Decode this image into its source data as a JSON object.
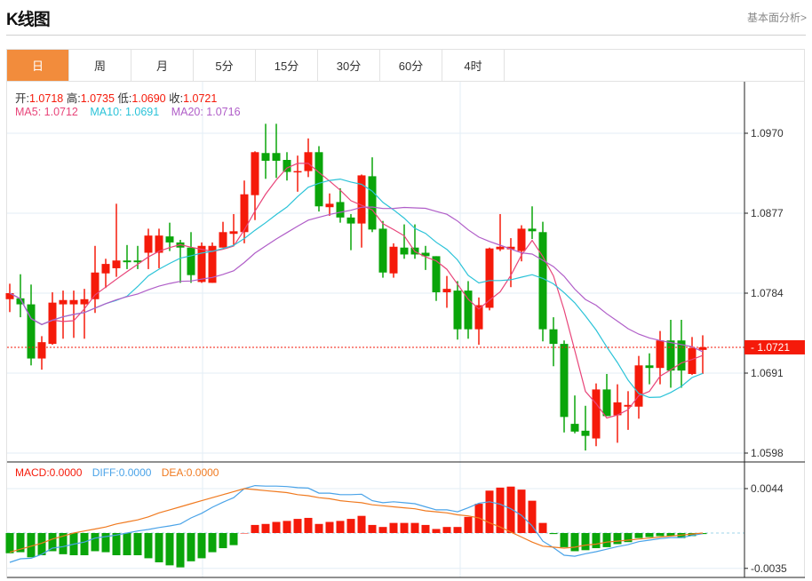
{
  "header": {
    "title": "K线图",
    "link": "基本面分析>"
  },
  "tabs": [
    {
      "label": "日",
      "active": true
    },
    {
      "label": "周"
    },
    {
      "label": "月"
    },
    {
      "label": "5分"
    },
    {
      "label": "15分"
    },
    {
      "label": "30分"
    },
    {
      "label": "60分"
    },
    {
      "label": "4时"
    }
  ],
  "ohlc_legend": {
    "open_label": "开:",
    "open": "1.0718",
    "high_label": "高:",
    "high": "1.0735",
    "low_label": "低:",
    "low": "1.0690",
    "close_label": "收:",
    "close": "1.0721"
  },
  "ma_legend": {
    "ma5": "MA5: 1.0712",
    "ma10": "MA10: 1.0691",
    "ma20": "MA20: 1.0716"
  },
  "macd_legend": {
    "macd": "MACD:0.0000",
    "diff": "DIFF:0.0000",
    "dea": "DEA:0.0000"
  },
  "colors": {
    "up": "#f51a0a",
    "down": "#0aa50a",
    "ma5": "#e8457a",
    "ma10": "#2bc3d8",
    "ma20": "#b05ec8",
    "diff": "#4aa3e8",
    "dea": "#f07a20",
    "active_tab": "#f28c3c"
  },
  "chart_data": [
    {
      "type": "candlestick",
      "price_ticks": [
        "1.0970",
        "1.0877",
        "1.0784",
        "1.0691",
        "1.0598"
      ],
      "ylim": [
        1.0598,
        1.097
      ],
      "current_price": "1.0721",
      "ma_periods": [
        5,
        10,
        20
      ],
      "ohlc": [
        [
          1.0777,
          1.0795,
          1.0762,
          1.0784
        ],
        [
          1.0778,
          1.0806,
          1.0756,
          1.0771
        ],
        [
          1.0771,
          1.0794,
          1.07,
          1.0708
        ],
        [
          1.0708,
          1.0734,
          1.0695,
          1.0727
        ],
        [
          1.0725,
          1.0785,
          1.0724,
          1.0773
        ],
        [
          1.0771,
          1.0787,
          1.0731,
          1.0776
        ],
        [
          1.0771,
          1.0787,
          1.0732,
          1.0776
        ],
        [
          1.0771,
          1.0789,
          1.0731,
          1.0777
        ],
        [
          1.0777,
          1.0839,
          1.0761,
          1.0808
        ],
        [
          1.0807,
          1.0824,
          1.079,
          1.0818
        ],
        [
          1.0813,
          1.0888,
          1.0803,
          1.0822
        ],
        [
          1.0822,
          1.084,
          1.0812,
          1.082
        ],
        [
          1.0822,
          1.0839,
          1.0812,
          1.082
        ],
        [
          1.0831,
          1.0859,
          1.0812,
          1.0851
        ],
        [
          1.0831,
          1.0859,
          1.0813,
          1.0851
        ],
        [
          1.085,
          1.0866,
          1.0833,
          1.0843
        ],
        [
          1.0843,
          1.0846,
          1.0796,
          1.0837
        ],
        [
          1.0837,
          1.0855,
          1.0796,
          1.0805
        ],
        [
          1.0797,
          1.0843,
          1.0796,
          1.0839
        ],
        [
          1.0796,
          1.0843,
          1.0796,
          1.0839
        ],
        [
          1.0837,
          1.0867,
          1.0837,
          1.0855
        ],
        [
          1.0853,
          1.0876,
          1.084,
          1.0856
        ],
        [
          1.0855,
          1.0915,
          1.0842,
          1.0899
        ],
        [
          1.0898,
          1.0949,
          1.0869,
          1.0948
        ],
        [
          1.0947,
          1.0981,
          1.0917,
          1.0938
        ],
        [
          1.0947,
          1.0981,
          1.0918,
          1.0938
        ],
        [
          1.0939,
          1.0948,
          1.0915,
          1.0925
        ],
        [
          1.0925,
          1.0944,
          1.0902,
          1.0926
        ],
        [
          1.0926,
          1.0964,
          1.0919,
          1.0948
        ],
        [
          1.0948,
          1.0955,
          1.0879,
          1.0885
        ],
        [
          1.0884,
          1.09,
          1.0874,
          1.0888
        ],
        [
          1.089,
          1.0906,
          1.0866,
          1.0872
        ],
        [
          1.0872,
          1.0876,
          1.0834,
          1.0865
        ],
        [
          1.0865,
          1.0922,
          1.0837,
          1.0921
        ],
        [
          1.092,
          1.0942,
          1.0855,
          1.0858
        ],
        [
          1.0859,
          1.0868,
          1.0802,
          1.0808
        ],
        [
          1.0807,
          1.0842,
          1.0802,
          1.0838
        ],
        [
          1.0837,
          1.0864,
          1.0824,
          1.0829
        ],
        [
          1.0837,
          1.0864,
          1.0824,
          1.0829
        ],
        [
          1.0831,
          1.0839,
          1.0811,
          1.0827
        ],
        [
          1.0827,
          1.0827,
          1.0775,
          1.0785
        ],
        [
          1.0785,
          1.0804,
          1.0767,
          1.0789
        ],
        [
          1.0787,
          1.0798,
          1.073,
          1.0742
        ],
        [
          1.0787,
          1.0798,
          1.0731,
          1.0742
        ],
        [
          1.0742,
          1.0779,
          1.0724,
          1.077
        ],
        [
          1.0767,
          1.0837,
          1.0764,
          1.0836
        ],
        [
          1.0835,
          1.0876,
          1.0833,
          1.0838
        ],
        [
          1.0835,
          1.0848,
          1.0791,
          1.0838
        ],
        [
          1.0833,
          1.0863,
          1.0821,
          1.0859
        ],
        [
          1.0859,
          1.0885,
          1.0847,
          1.0856
        ],
        [
          1.0855,
          1.0867,
          1.0728,
          1.0742
        ],
        [
          1.0742,
          1.0756,
          1.0699,
          1.0725
        ],
        [
          1.0725,
          1.0729,
          1.0622,
          1.064
        ],
        [
          1.0632,
          1.0665,
          1.0621,
          1.0623
        ],
        [
          1.0624,
          1.0653,
          1.0601,
          1.0618
        ],
        [
          1.0615,
          1.0679,
          1.0606,
          1.0672
        ],
        [
          1.0672,
          1.069,
          1.0641,
          1.0641
        ],
        [
          1.0642,
          1.0678,
          1.061,
          1.0657
        ],
        [
          1.0652,
          1.067,
          1.0625,
          1.0654
        ],
        [
          1.0652,
          1.0711,
          1.0638,
          1.07
        ],
        [
          1.07,
          1.0714,
          1.0678,
          1.0697
        ],
        [
          1.0697,
          1.074,
          1.0678,
          1.0729
        ],
        [
          1.0729,
          1.0753,
          1.0674,
          1.0694
        ],
        [
          1.0729,
          1.0753,
          1.0674,
          1.0694
        ],
        [
          1.069,
          1.0733,
          1.0689,
          1.072
        ],
        [
          1.0718,
          1.0735,
          1.069,
          1.0721
        ]
      ]
    },
    {
      "type": "bar+line",
      "indicator": "MACD",
      "ticks": [
        "0.0044",
        "-0.0035"
      ],
      "macd": [
        -0.002,
        -0.0019,
        -0.0024,
        -0.0022,
        -0.0018,
        -0.0021,
        -0.0022,
        -0.0022,
        -0.0018,
        -0.0019,
        -0.0022,
        -0.0022,
        -0.0022,
        -0.0025,
        -0.0029,
        -0.0032,
        -0.0034,
        -0.0028,
        -0.0025,
        -0.0019,
        -0.0015,
        -0.0012,
        0.0,
        0.0008,
        0.0009,
        0.0011,
        0.0012,
        0.0014,
        0.0015,
        0.0009,
        0.0011,
        0.0012,
        0.0014,
        0.0017,
        0.0008,
        0.0006,
        0.001,
        0.001,
        0.001,
        0.0008,
        0.0004,
        0.0006,
        0.0006,
        0.0016,
        0.0029,
        0.0042,
        0.0045,
        0.0046,
        0.0043,
        0.0032,
        0.001,
        -0.0001,
        -0.0014,
        -0.0018,
        -0.0017,
        -0.0015,
        -0.0014,
        -0.0011,
        -0.0009,
        -0.0005,
        -0.0004,
        -0.0003,
        -0.0003,
        -0.0005,
        -0.0003,
        -0.0001
      ],
      "dea": [
        -0.0019,
        -0.0016,
        -0.0013,
        -0.001,
        -0.0006,
        -0.0003,
        0.0,
        0.0002,
        0.0004,
        0.0006,
        0.0009,
        0.0011,
        0.0013,
        0.0016,
        0.002,
        0.0023,
        0.0026,
        0.0029,
        0.0032,
        0.0035,
        0.0038,
        0.0041,
        0.0044,
        0.0043,
        0.0042,
        0.0041,
        0.004,
        0.0038,
        0.0037,
        0.0035,
        0.0034,
        0.0032,
        0.0031,
        0.003,
        0.0028,
        0.0027,
        0.0026,
        0.0025,
        0.0024,
        0.0022,
        0.0021,
        0.002,
        0.0018,
        0.0017,
        0.0015,
        0.001,
        0.0006,
        0.0001,
        -0.0004,
        -0.0009,
        -0.0013,
        -0.0014,
        -0.0015,
        -0.0014,
        -0.0012,
        -0.0011,
        -0.0009,
        -0.0008,
        -0.0007,
        -0.0006,
        -0.0005,
        -0.0004,
        -0.0003,
        -0.0002,
        -0.0001,
        0.0
      ]
    }
  ]
}
